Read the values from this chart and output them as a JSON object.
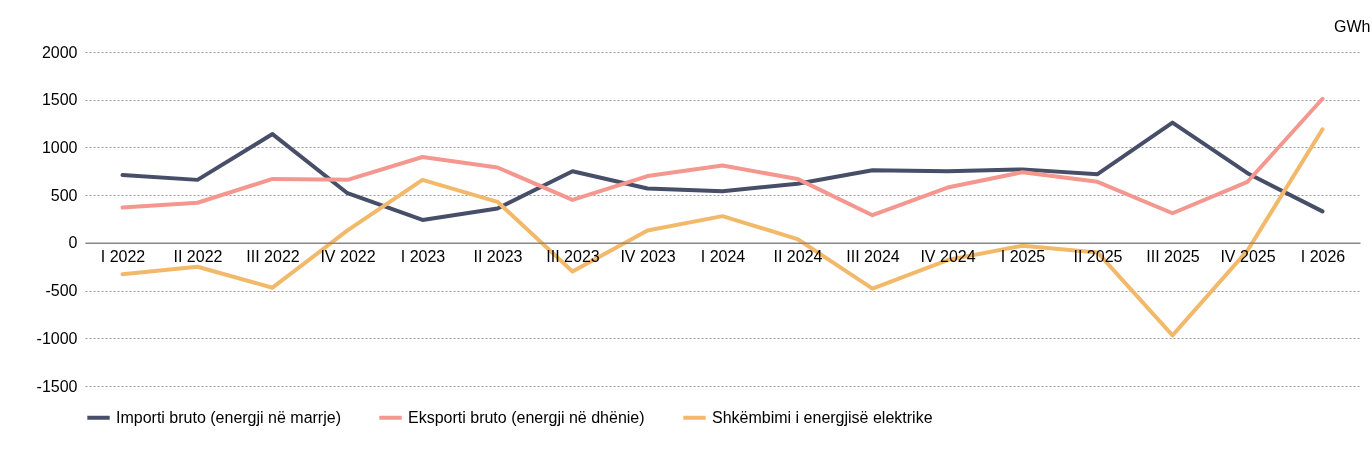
{
  "chart_data": {
    "type": "line",
    "ylabel": "GWh",
    "categories": [
      "I 2022",
      "II 2022",
      "III 2022",
      "IV 2022",
      "I 2023",
      "II 2023",
      "III 2023",
      "IV 2023",
      "I 2024",
      "II 2024",
      "III 2024",
      "IV 2024",
      "I 2025",
      "II 2025",
      "III 2025",
      "IV 2025",
      "I 2026"
    ],
    "series": [
      {
        "name": "Importi bruto (energji në marrje)",
        "color": "#474e68",
        "values": [
          710,
          660,
          1140,
          520,
          240,
          360,
          750,
          570,
          540,
          620,
          760,
          750,
          770,
          720,
          1260,
          730,
          330
        ]
      },
      {
        "name": "Eksporti bruto (energji në dhënie)",
        "color": "#f4978e",
        "values": [
          370,
          420,
          670,
          660,
          900,
          790,
          450,
          700,
          810,
          670,
          290,
          580,
          740,
          640,
          310,
          640,
          1510
        ]
      },
      {
        "name": "Shkëmbimi i energjisë elektrike",
        "color": "#f3b96b",
        "values": [
          -330,
          -250,
          -470,
          130,
          660,
          430,
          -300,
          130,
          280,
          40,
          -480,
          -180,
          -30,
          -100,
          -970,
          -80,
          1190
        ]
      }
    ],
    "ylim": [
      -1500,
      2000
    ],
    "yticks": [
      -1500,
      -1000,
      -500,
      0,
      500,
      1000,
      1500,
      2000
    ],
    "grid": "y",
    "legend": "bottom"
  }
}
